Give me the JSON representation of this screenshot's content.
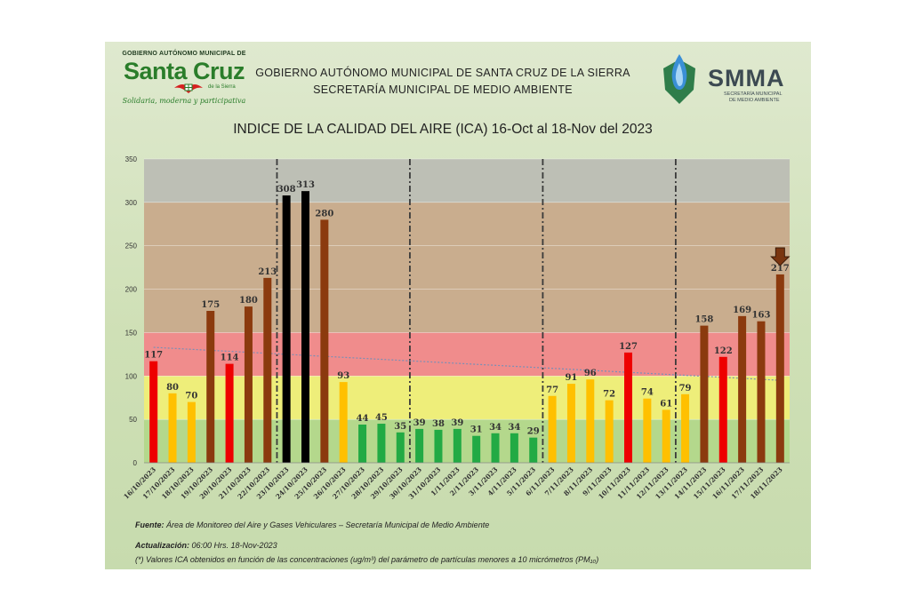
{
  "logo_left": {
    "government": "GOBIERNO AUTÓNOMO MUNICIPAL DE",
    "city": "Santa Cruz",
    "city_sub": "de la Sierra",
    "slogan": "Solidaria, moderna y participativa"
  },
  "header": {
    "line1": "GOBIERNO AUTÓNOMO MUNICIPAL DE SANTA CRUZ DE LA SIERRA",
    "line2": "SECRETARÍA MUNICIPAL DE MEDIO AMBIENTE"
  },
  "logo_right": {
    "name": "SMMA",
    "sub1": "SECRETARÍA MUNICIPAL",
    "sub2": "DE MEDIO AMBIENTE"
  },
  "colors": {
    "red": "#ee0000",
    "orange": "#ffc000",
    "brown": "#8b3a0e",
    "black": "#000000",
    "green": "#22aa44",
    "band_good": "#b4d88c",
    "band_moderate": "#eeee7a",
    "band_unhealthy": "#f08c8c",
    "band_very_unhealthy": "#c9ad8e",
    "band_hazardous": "#bdbfb5"
  },
  "chart_data": {
    "type": "bar",
    "title": "INDICE DE LA CALIDAD DEL AIRE (ICA) 16-Oct al 18-Nov del 2023",
    "xlabel": "",
    "ylabel": "",
    "ylim": [
      0,
      350
    ],
    "yticks": [
      0,
      50,
      100,
      150,
      200,
      250,
      300,
      350
    ],
    "bands": [
      {
        "from": 0,
        "to": 50,
        "color": "#b4d88c"
      },
      {
        "from": 50,
        "to": 100,
        "color": "#eeee7a"
      },
      {
        "from": 100,
        "to": 150,
        "color": "#f08c8c"
      },
      {
        "from": 150,
        "to": 300,
        "color": "#c9ad8e"
      },
      {
        "from": 300,
        "to": 350,
        "color": "#bdbfb5"
      }
    ],
    "categories": [
      "16/10/2023",
      "17/10/2023",
      "18/10/2023",
      "19/10/2023",
      "20/10/2023",
      "21/10/2023",
      "22/10/2023",
      "23/10/2023",
      "24/10/2023",
      "25/10/2023",
      "26/10/2023",
      "27/10/2023",
      "28/10/2023",
      "29/10/2023",
      "30/10/2023",
      "31/10/2023",
      "1/11/2023",
      "2/11/2023",
      "3/11/2023",
      "4/11/2023",
      "5/11/2023",
      "6/11/2023",
      "7/11/2023",
      "8/11/2023",
      "9/11/2023",
      "10/11/2023",
      "11/11/2023",
      "12/11/2023",
      "13/11/2023",
      "14/11/2023",
      "15/11/2023",
      "16/11/2023",
      "17/11/2023",
      "18/11/2023"
    ],
    "values": [
      117,
      80,
      70,
      175,
      114,
      180,
      213,
      308,
      313,
      280,
      93,
      44,
      45,
      35,
      39,
      38,
      39,
      31,
      34,
      34,
      29,
      77,
      91,
      96,
      72,
      127,
      74,
      61,
      79,
      158,
      122,
      169,
      163,
      217
    ],
    "bar_colors": [
      "red",
      "orange",
      "orange",
      "brown",
      "red",
      "brown",
      "brown",
      "black",
      "black",
      "brown",
      "orange",
      "green",
      "green",
      "green",
      "green",
      "green",
      "green",
      "green",
      "green",
      "green",
      "green",
      "orange",
      "orange",
      "orange",
      "orange",
      "red",
      "orange",
      "orange",
      "orange",
      "brown",
      "red",
      "brown",
      "brown",
      "brown"
    ],
    "week_separators_after": [
      6,
      13,
      20,
      27
    ],
    "trend": {
      "start": 133,
      "end": 95
    },
    "highlight_arrow_index": 33
  },
  "footer": {
    "source_label": "Fuente:",
    "source_text": "Área de Monitoreo del Aire y Gases Vehiculares – Secretaría Municipal de Medio Ambiente",
    "update_label": "Actualización:",
    "update_text": "06:00 Hrs.   18-Nov-2023",
    "note_text": "(*) Valores ICA obtenidos en función de las concentraciones (ug/m³) del parámetro de partículas menores a 10 micrómetros (PM₁₀)"
  }
}
